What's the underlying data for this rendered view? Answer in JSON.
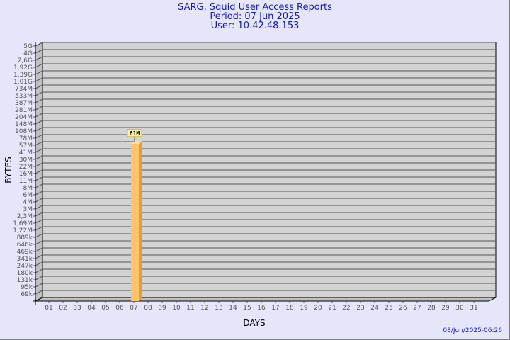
{
  "header": {
    "title": "SARG, Squid User Access Reports",
    "period": "Period: 07 Jun 2025",
    "user": "User: 10.42.48.153"
  },
  "footer": {
    "timestamp": "08/Jun/2025-06:26"
  },
  "chart_data": {
    "type": "bar",
    "xlabel": "DAYS",
    "ylabel": "BYTES",
    "y_scale": "log",
    "y_ticks": [
      "5G",
      "4G",
      "2,6G",
      "1,92G",
      "1,39G",
      "1,01G",
      "734M",
      "533M",
      "387M",
      "281M",
      "204M",
      "148M",
      "108M",
      "78M",
      "57M",
      "41M",
      "30M",
      "22M",
      "16M",
      "11M",
      "8M",
      "6M",
      "4M",
      "3M",
      "2,3M",
      "1,69M",
      "1,22M",
      "889k",
      "646k",
      "469k",
      "341k",
      "247k",
      "180k",
      "131k",
      "95k",
      "69k"
    ],
    "categories": [
      "01",
      "02",
      "03",
      "04",
      "05",
      "06",
      "07",
      "08",
      "09",
      "10",
      "11",
      "12",
      "13",
      "14",
      "15",
      "16",
      "17",
      "18",
      "19",
      "20",
      "21",
      "22",
      "23",
      "24",
      "25",
      "26",
      "27",
      "28",
      "29",
      "30",
      "31"
    ],
    "bars": [
      {
        "category": "07",
        "value_label": "61M",
        "value_bytes": 61000000
      }
    ],
    "bar_color": "#ffc468",
    "bar_side_color": "#d9a04a",
    "plot_bg": "#d3d3d3",
    "grid": true
  }
}
